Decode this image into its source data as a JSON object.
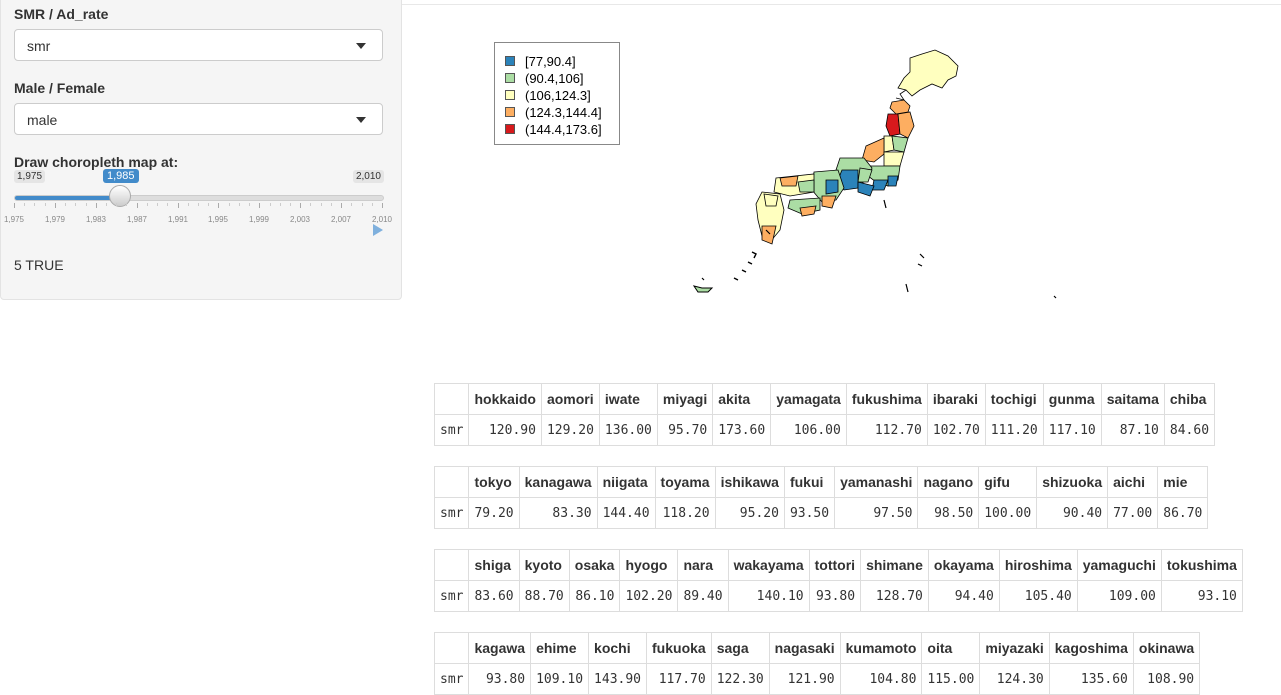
{
  "sidebar": {
    "smr_label": "SMR / Ad_rate",
    "smr_value": "smr",
    "sex_label": "Male / Female",
    "sex_value": "male",
    "year_label": "Draw choropleth map at:",
    "slider": {
      "min": 1975,
      "max": 2010,
      "value": 1985,
      "min_label": "1,975",
      "max_label": "2,010",
      "value_label": "1,985",
      "tick_labels": [
        "1,975",
        "1,979",
        "1,983",
        "1,987",
        "1,991",
        "1,995",
        "1,999",
        "2,003",
        "2,007",
        "2,010"
      ]
    },
    "output_text": "5 TRUE"
  },
  "legend": [
    {
      "label": "[77,90.4]",
      "color": "#2b83ba"
    },
    {
      "label": "(90.4,106]",
      "color": "#abdda4"
    },
    {
      "label": "(106,124.3]",
      "color": "#ffffbf"
    },
    {
      "label": "(124.3,144.4]",
      "color": "#fdae61"
    },
    {
      "label": "(144.4,173.6]",
      "color": "#d7191c"
    }
  ],
  "tables": [
    {
      "row_label": "smr",
      "cols": [
        "hokkaido",
        "aomori",
        "iwate",
        "miyagi",
        "akita",
        "yamagata",
        "fukushima",
        "ibaraki",
        "tochigi",
        "gunma",
        "saitama",
        "chiba"
      ],
      "vals": [
        "120.90",
        "129.20",
        "136.00",
        "95.70",
        "173.60",
        "106.00",
        "112.70",
        "102.70",
        "111.20",
        "117.10",
        "87.10",
        "84.60"
      ]
    },
    {
      "row_label": "smr",
      "cols": [
        "tokyo",
        "kanagawa",
        "niigata",
        "toyama",
        "ishikawa",
        "fukui",
        "yamanashi",
        "nagano",
        "gifu",
        "shizuoka",
        "aichi",
        "mie"
      ],
      "vals": [
        "79.20",
        "83.30",
        "144.40",
        "118.20",
        "95.20",
        "93.50",
        "97.50",
        "98.50",
        "100.00",
        "90.40",
        "77.00",
        "86.70"
      ]
    },
    {
      "row_label": "smr",
      "cols": [
        "shiga",
        "kyoto",
        "osaka",
        "hyogo",
        "nara",
        "wakayama",
        "tottori",
        "shimane",
        "okayama",
        "hiroshima",
        "yamaguchi",
        "tokushima"
      ],
      "vals": [
        "83.60",
        "88.70",
        "86.10",
        "102.20",
        "89.40",
        "140.10",
        "93.80",
        "128.70",
        "94.40",
        "105.40",
        "109.00",
        "93.10"
      ]
    },
    {
      "row_label": "smr",
      "cols": [
        "kagawa",
        "ehime",
        "kochi",
        "fukuoka",
        "saga",
        "nagasaki",
        "kumamoto",
        "oita",
        "miyazaki",
        "kagoshima",
        "okinawa"
      ],
      "vals": [
        "93.80",
        "109.10",
        "143.90",
        "117.70",
        "122.30",
        "121.90",
        "104.80",
        "115.00",
        "124.30",
        "135.60",
        "108.90"
      ]
    }
  ]
}
